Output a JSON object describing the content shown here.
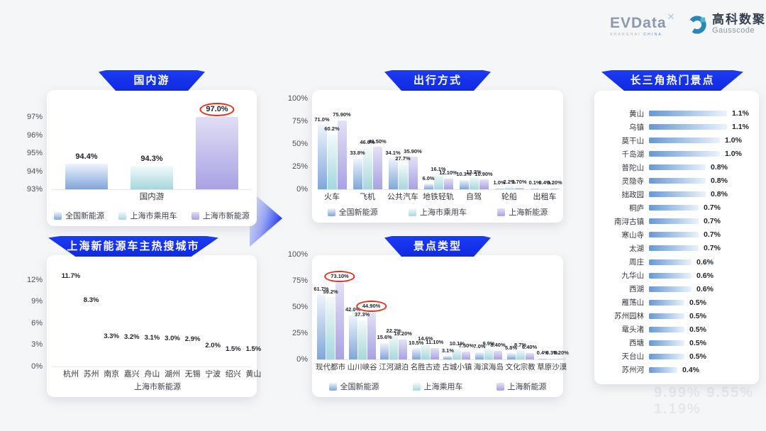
{
  "header": {
    "evdata": {
      "word": "EVData",
      "mark": "✕",
      "sub_gray": "SHANGHAI ",
      "sub_blue": "CHINA"
    },
    "gausscode": {
      "cn": "高科数聚",
      "en": "Gausscode"
    }
  },
  "colors": {
    "banner_blue": "#1433ee",
    "annotation_red": "#e5301f",
    "hotspot_bar": {
      "left": "#6598d6",
      "right": "#eaf3fc"
    }
  },
  "watermark": {
    "text": "9.99%  9.55%  1.19%"
  },
  "chart_data": [
    {
      "id": "domestic-travel",
      "type": "bar",
      "title": "国内游",
      "axis": {
        "ticks": [
          93,
          94,
          95,
          96,
          97
        ],
        "unit": "%",
        "min": 93
      },
      "categories": [
        "国内游"
      ],
      "series": [
        {
          "name": "全国新能源",
          "color": {
            "top": "#eef4fc",
            "bottom": "#7fa6da"
          },
          "values": [
            "94.4%"
          ]
        },
        {
          "name": "上海市乘用车",
          "color": {
            "top": "#f2fafb",
            "bottom": "#a5d7dd"
          },
          "values": [
            "94.3%"
          ]
        },
        {
          "name": "上海市新能源",
          "color": {
            "top": "#e0def4",
            "bottom": "#a8a2e3"
          },
          "values": [
            "97.0%"
          ]
        }
      ],
      "circled": [
        [
          2,
          0
        ]
      ]
    },
    {
      "id": "shanghai-ev-hot-cities",
      "type": "bar",
      "title": "上海新能源车主热搜城市",
      "axis": {
        "ticks": [
          0,
          3,
          6,
          9,
          12
        ],
        "unit": "%",
        "min": 0
      },
      "categories": [
        "杭州",
        "苏州",
        "南京",
        "嘉兴",
        "舟山",
        "湖州",
        "无锡",
        "宁波",
        "绍兴",
        "黄山"
      ],
      "series": [
        {
          "name": "上海市新能源",
          "color": {
            "top": "#82abdd",
            "bottom": "#dcе9f8"
          },
          "values": [
            "11.7%",
            "8.3%",
            "3.3%",
            "3.2%",
            "3.1%",
            "3.0%",
            "2.9%",
            "2.0%",
            "1.5%",
            "1.5%"
          ]
        }
      ],
      "circled": []
    },
    {
      "id": "travel-modes",
      "type": "bar",
      "title": "出行方式",
      "axis": {
        "ticks": [
          0,
          25,
          50,
          75,
          100
        ],
        "unit": "%",
        "min": 0
      },
      "categories": [
        "火车",
        "飞机",
        "公共汽车",
        "地铁轻轨",
        "自驾",
        "轮船",
        "出租车"
      ],
      "series": [
        {
          "name": "全国新能源",
          "color": {
            "top": "#eef4fc",
            "bottom": "#7fa6da"
          },
          "values": [
            "71.0%",
            "33.8%",
            "34.1%",
            "6.0%",
            "10.3%",
            "1.0%",
            "0.1%"
          ]
        },
        {
          "name": "上海市乘用车",
          "color": {
            "top": "#f2fafb",
            "bottom": "#a5d7dd"
          },
          "values": [
            "60.2%",
            "46.0%",
            "27.7%",
            "16.1%",
            "13.2%",
            "2.2%",
            "0.4%"
          ]
        },
        {
          "name": "上海新能源",
          "color": {
            "top": "#e3e1f6",
            "bottom": "#a8a2e3"
          },
          "values": [
            "75.90%",
            "46.50%",
            "35.90%",
            "12.10%",
            "10.90%",
            "1.70%",
            "0.20%"
          ]
        }
      ],
      "circled": []
    },
    {
      "id": "attraction-types",
      "type": "bar",
      "title": "景点类型",
      "axis": {
        "ticks": [
          0,
          25,
          50,
          75,
          100
        ],
        "unit": "%",
        "min": 0
      },
      "categories": [
        "现代都市",
        "山川峡谷",
        "江河湖泊",
        "名胜古迹",
        "古城小镇",
        "海滨海岛",
        "文化宗教",
        "草原沙漠"
      ],
      "series": [
        {
          "name": "全国新能源",
          "color": {
            "top": "#eef4fc",
            "bottom": "#7fa6da"
          },
          "values": [
            "61.7%",
            "42.0%",
            "15.6%",
            "10.5%",
            "3.1%",
            "7.0%",
            "5.8%",
            "0.4%"
          ]
        },
        {
          "name": "上海乘用车",
          "color": {
            "top": "#f2fafb",
            "bottom": "#a5d7dd"
          },
          "values": [
            "59.2%",
            "37.3%",
            "22.2%",
            "14.6%",
            "10.1%",
            "9.9%",
            "8.7%",
            "0.3%"
          ]
        },
        {
          "name": "上海新能源",
          "color": {
            "top": "#e3e1f6",
            "bottom": "#a8a2e3"
          },
          "values": [
            "73.10%",
            "44.90%",
            "19.20%",
            "11.10%",
            "7.50%",
            "8.40%",
            "6.40%",
            "0.20%"
          ]
        }
      ],
      "circled": [
        [
          2,
          0
        ],
        [
          2,
          1
        ]
      ]
    },
    {
      "id": "yangtze-delta-hot-attractions",
      "type": "bar",
      "title": "长三角热门景点",
      "orientation": "horizontal",
      "items": [
        {
          "name": "黄山",
          "value": "1.1%"
        },
        {
          "name": "乌镇",
          "value": "1.1%"
        },
        {
          "name": "莫干山",
          "value": "1.0%"
        },
        {
          "name": "千岛湖",
          "value": "1.0%"
        },
        {
          "name": "普陀山",
          "value": "0.8%"
        },
        {
          "name": "灵隐寺",
          "value": "0.8%"
        },
        {
          "name": "拙政园",
          "value": "0.8%"
        },
        {
          "name": "桐庐",
          "value": "0.7%"
        },
        {
          "name": "南浔古镇",
          "value": "0.7%"
        },
        {
          "name": "寒山寺",
          "value": "0.7%"
        },
        {
          "name": "太湖",
          "value": "0.7%"
        },
        {
          "name": "周庄",
          "value": "0.6%"
        },
        {
          "name": "九华山",
          "value": "0.6%"
        },
        {
          "name": "西湖",
          "value": "0.6%"
        },
        {
          "name": "雁荡山",
          "value": "0.5%"
        },
        {
          "name": "苏州园林",
          "value": "0.5%"
        },
        {
          "name": "鼋头渚",
          "value": "0.5%"
        },
        {
          "name": "西塘",
          "value": "0.5%"
        },
        {
          "name": "天台山",
          "value": "0.5%"
        },
        {
          "name": "苏州河",
          "value": "0.4%"
        }
      ]
    }
  ]
}
